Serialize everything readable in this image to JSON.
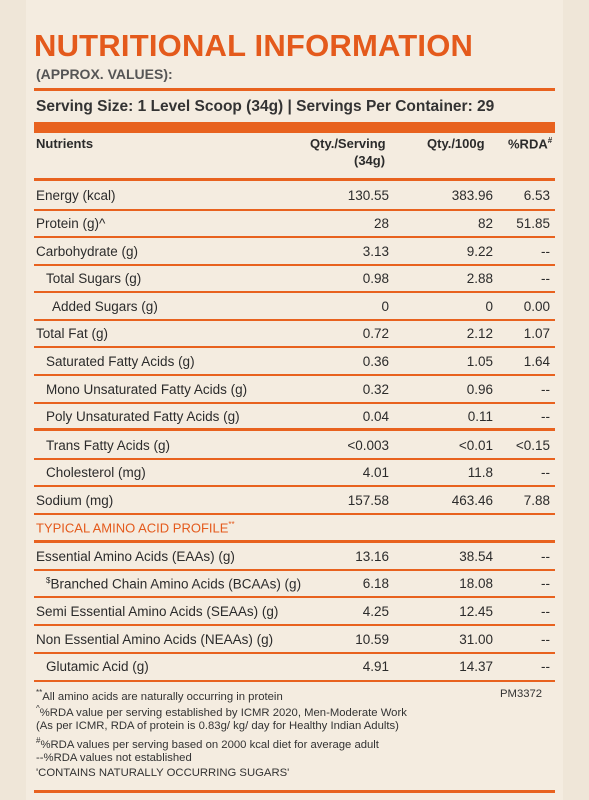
{
  "title": "NUTRITIONAL INFORMATION",
  "subtitle": "(APPROX. VALUES):",
  "serving": "Serving Size: 1 Level Scoop (34g) | Servings Per Container: 29",
  "headers": {
    "nutrients": "Nutrients",
    "per_serving": "Qty./Serving",
    "per_serving_unit": "(34g)",
    "per_100g": "Qty./100g",
    "rda": "%RDA",
    "rda_mark": "#"
  },
  "rows": [
    {
      "name": "Energy (kcal)",
      "serving": "130.55",
      "per100": "383.96",
      "rda": "6.53"
    },
    {
      "name": "Protein (g)^",
      "serving": "28",
      "per100": "82",
      "rda": "51.85"
    },
    {
      "name": "Carbohydrate (g)",
      "serving": "3.13",
      "per100": "9.22",
      "rda": "--"
    },
    {
      "name": "Total Sugars (g)",
      "serving": "0.98",
      "per100": "2.88",
      "rda": "--"
    },
    {
      "name": "Added Sugars (g)",
      "serving": "0",
      "per100": "0",
      "rda": "0.00"
    },
    {
      "name": "Total Fat (g)",
      "serving": "0.72",
      "per100": "2.12",
      "rda": "1.07"
    },
    {
      "name": "Saturated Fatty Acids (g)",
      "serving": "0.36",
      "per100": "1.05",
      "rda": "1.64"
    },
    {
      "name": "Mono Unsaturated Fatty Acids (g)",
      "serving": "0.32",
      "per100": "0.96",
      "rda": "--"
    },
    {
      "name": "Poly Unsaturated Fatty Acids (g)",
      "serving": "0.04",
      "per100": "0.11",
      "rda": "--"
    },
    {
      "name": "Trans Fatty Acids (g)",
      "serving": "<0.003",
      "per100": "<0.01",
      "rda": "<0.15"
    },
    {
      "name": "Cholesterol (mg)",
      "serving": "4.01",
      "per100": "11.8",
      "rda": "--"
    },
    {
      "name": "Sodium (mg)",
      "serving": "157.58",
      "per100": "463.46",
      "rda": "7.88"
    }
  ],
  "amino_section": "TYPICAL AMINO ACID PROFILE",
  "amino_section_mark": "**",
  "amino_rows": [
    {
      "name": "Essential Amino Acids (EAAs) (g)",
      "serving": "13.16",
      "per100": "38.54",
      "rda": "--"
    },
    {
      "mark": "$",
      "name": "Branched Chain Amino Acids (BCAAs) (g)",
      "serving": "6.18",
      "per100": "18.08",
      "rda": "--"
    },
    {
      "name": "Semi Essential Amino Acids (SEAAs) (g)",
      "serving": "4.25",
      "per100": "12.45",
      "rda": "--"
    },
    {
      "name": "Non Essential Amino Acids (NEAAs) (g)",
      "serving": "10.59",
      "per100": "31.00",
      "rda": "--"
    },
    {
      "name": "Glutamic Acid (g)",
      "serving": "4.91",
      "per100": "14.37",
      "rda": "--"
    }
  ],
  "footnotes": {
    "f1_mark": "**",
    "f1": "All amino acids are naturally occurring in protein",
    "f2_mark": "^",
    "f2": "%RDA value per serving established by ICMR 2020, Men-Moderate Work",
    "f3": "(As per ICMR, RDA of protein is 0.83g/ kg/ day  for Healthy Indian Adults)",
    "f4_mark": "#",
    "f4": "%RDA values per serving based on 2000 kcal diet for average adult",
    "f5": "--%RDA values not established",
    "f6": "'CONTAINS NATURALLY OCCURRING SUGARS'"
  },
  "code": "PM3372"
}
